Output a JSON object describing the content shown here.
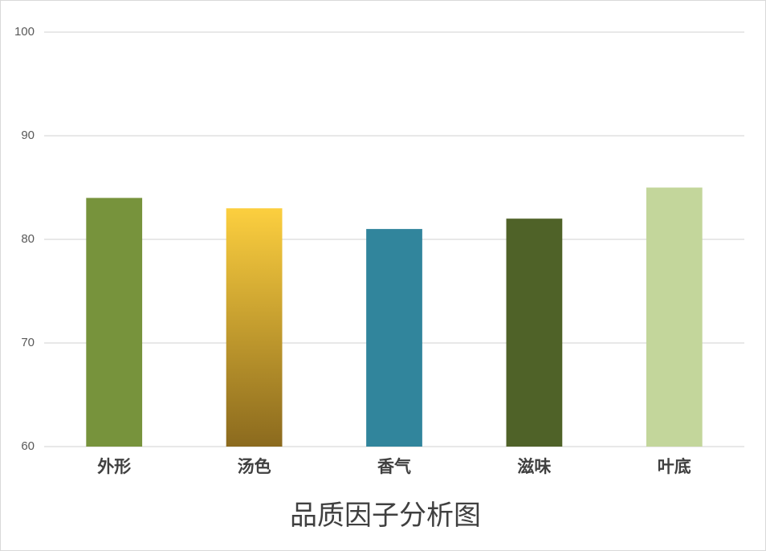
{
  "chart_data": {
    "type": "bar",
    "title": "品质因子分析图",
    "categories": [
      "外形",
      "汤色",
      "香气",
      "滋味",
      "叶底"
    ],
    "values": [
      84,
      83,
      81,
      82,
      85
    ],
    "colors": [
      "#77933c",
      [
        "#fccf3f",
        "#8b6a1e"
      ],
      "#31859c",
      "#4f6228",
      "#c3d69b"
    ],
    "ylim": [
      60,
      100
    ],
    "yticks": [
      60,
      70,
      80,
      90,
      100
    ],
    "grid": true
  }
}
